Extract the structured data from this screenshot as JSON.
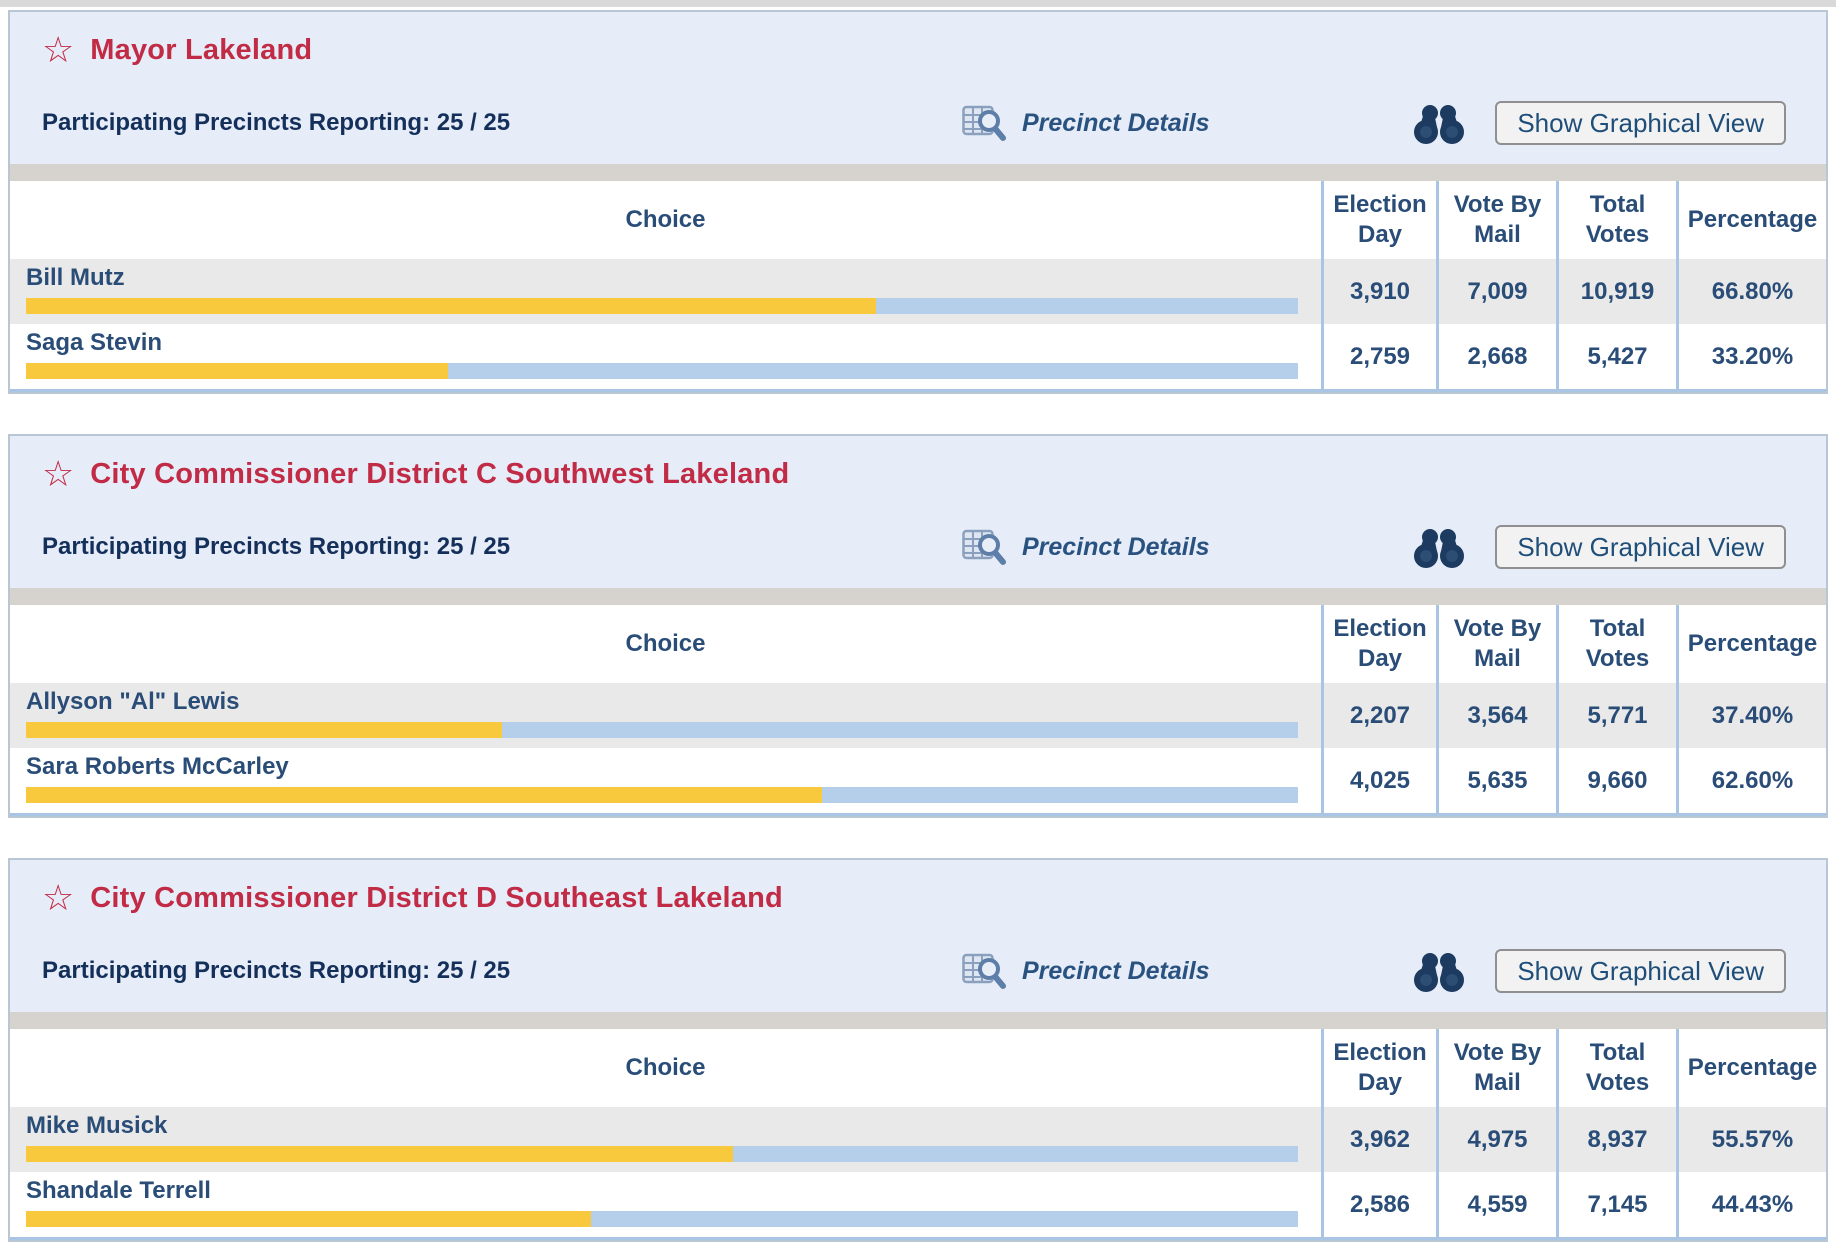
{
  "shared": {
    "precinct_details_label": "Precinct Details",
    "show_graphical_label": "Show Graphical View",
    "columns": {
      "choice": "Choice",
      "election_day": "Election Day",
      "vote_by_mail": "Vote By Mail",
      "total_votes": "Total Votes",
      "percentage": "Percentage"
    }
  },
  "contests": [
    {
      "title": "Mayor Lakeland",
      "precincts_reporting": "Participating Precincts Reporting: 25 / 25",
      "candidates": [
        {
          "name": "Bill Mutz",
          "election_day": "3,910",
          "vote_by_mail": "7,009",
          "total_votes": "10,919",
          "percentage": "66.80%",
          "pct": 66.8
        },
        {
          "name": "Saga Stevin",
          "election_day": "2,759",
          "vote_by_mail": "2,668",
          "total_votes": "5,427",
          "percentage": "33.20%",
          "pct": 33.2
        }
      ]
    },
    {
      "title": "City Commissioner District C Southwest Lakeland",
      "precincts_reporting": "Participating Precincts Reporting: 25 / 25",
      "candidates": [
        {
          "name": "Allyson \"Al\" Lewis",
          "election_day": "2,207",
          "vote_by_mail": "3,564",
          "total_votes": "5,771",
          "percentage": "37.40%",
          "pct": 37.4
        },
        {
          "name": "Sara Roberts McCarley",
          "election_day": "4,025",
          "vote_by_mail": "5,635",
          "total_votes": "9,660",
          "percentage": "62.60%",
          "pct": 62.6
        }
      ]
    },
    {
      "title": "City Commissioner District D Southeast Lakeland",
      "precincts_reporting": "Participating Precincts Reporting: 25 / 25",
      "candidates": [
        {
          "name": "Mike Musick",
          "election_day": "3,962",
          "vote_by_mail": "4,975",
          "total_votes": "8,937",
          "percentage": "55.57%",
          "pct": 55.57
        },
        {
          "name": "Shandale Terrell",
          "election_day": "2,586",
          "vote_by_mail": "4,559",
          "total_votes": "7,145",
          "percentage": "44.43%",
          "pct": 44.43
        }
      ]
    }
  ]
}
